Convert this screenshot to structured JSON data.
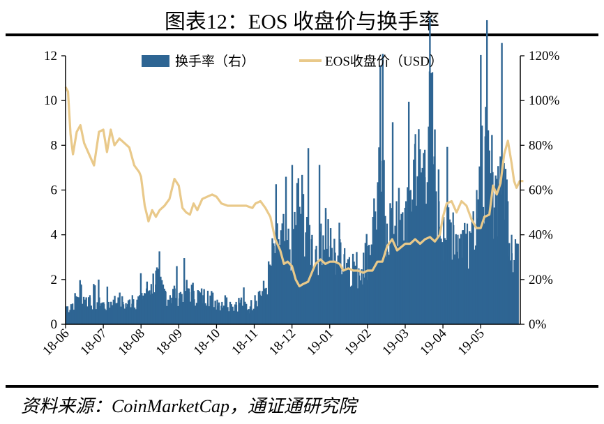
{
  "title": "图表12：EOS 收盘价与换手率",
  "source": "资料来源：CoinMarketCap，通证通研究院",
  "colors": {
    "turnover": "#2E6593",
    "price": "#E9C98A",
    "axis": "#000000"
  },
  "chart_data": {
    "type": "bar+line",
    "x_tick_labels": [
      "18-06",
      "18-07",
      "18-08",
      "18-09",
      "18-10",
      "18-11",
      "18-12",
      "19-01",
      "19-02",
      "19-03",
      "19-04",
      "19-05"
    ],
    "y_left": {
      "min": 0,
      "max": 12,
      "ticks": [
        "0",
        "2",
        "4",
        "6",
        "8",
        "10",
        "12"
      ]
    },
    "y_right": {
      "min": 0,
      "max": 120,
      "ticks": [
        "0%",
        "20%",
        "40%",
        "60%",
        "80%",
        "100%",
        "120%"
      ]
    },
    "legend": [
      "换手率（右）",
      "EOS收盘价（USD）"
    ],
    "legend_position": "top-center",
    "grid": false,
    "series": [
      {
        "name": "换手率（右）",
        "axis": "right",
        "type": "bar",
        "unit": "%",
        "monthly_samples": [
          {
            "month": "18-06",
            "values": [
              8,
              9,
              12,
              18,
              11,
              13,
              10,
              12
            ]
          },
          {
            "month": "18-07",
            "values": [
              9,
              10,
              11,
              12,
              10,
              9,
              13,
              11
            ]
          },
          {
            "month": "18-08",
            "values": [
              14,
              16,
              18,
              24,
              17,
              15,
              13,
              16
            ]
          },
          {
            "month": "18-09",
            "values": [
              14,
              17,
              16,
              15,
              14,
              13,
              15,
              12
            ]
          },
          {
            "month": "18-10",
            "values": [
              11,
              10,
              12,
              9,
              10,
              11,
              9,
              8
            ]
          },
          {
            "month": "18-11",
            "values": [
              13,
              15,
              16,
              24,
              35,
              38,
              40,
              36
            ]
          },
          {
            "month": "18-12",
            "values": [
              42,
              58,
              55,
              48,
              38,
              35,
              45,
              50
            ]
          },
          {
            "month": "19-01",
            "values": [
              35,
              32,
              38,
              34,
              30,
              28,
              25,
              32
            ]
          },
          {
            "month": "19-02",
            "values": [
              35,
              48,
              62,
              73,
              45,
              52,
              55,
              43
            ]
          },
          {
            "month": "19-03",
            "values": [
              55,
              60,
              85,
              70,
              78,
              113,
              75,
              55
            ]
          },
          {
            "month": "19-04",
            "values": [
              48,
              45,
              50,
              40,
              42,
              45,
              46,
              60
            ]
          },
          {
            "month": "19-05",
            "values": [
              72,
              84,
              70,
              68,
              65,
              75,
              72,
              55,
              40,
              38
            ]
          }
        ]
      },
      {
        "name": "EOS收盘价（USD）",
        "axis": "left",
        "type": "line",
        "unit": "USD",
        "points": [
          [
            "18-06-01",
            10.6
          ],
          [
            "18-06-03",
            10.4
          ],
          [
            "18-06-05",
            8.5
          ],
          [
            "18-06-07",
            7.6
          ],
          [
            "18-06-10",
            8.6
          ],
          [
            "18-06-13",
            8.9
          ],
          [
            "18-06-16",
            8.1
          ],
          [
            "18-06-20",
            7.6
          ],
          [
            "18-06-24",
            7.1
          ],
          [
            "18-06-28",
            8.6
          ],
          [
            "18-07-01",
            8.7
          ],
          [
            "18-07-04",
            7.7
          ],
          [
            "18-07-07",
            8.7
          ],
          [
            "18-07-10",
            8.0
          ],
          [
            "18-07-14",
            8.3
          ],
          [
            "18-07-18",
            8.1
          ],
          [
            "18-07-22",
            7.9
          ],
          [
            "18-07-26",
            7.1
          ],
          [
            "18-07-30",
            6.8
          ],
          [
            "18-08-01",
            6.6
          ],
          [
            "18-08-04",
            5.3
          ],
          [
            "18-08-07",
            4.6
          ],
          [
            "18-08-10",
            5.1
          ],
          [
            "18-08-13",
            4.8
          ],
          [
            "18-08-16",
            5.1
          ],
          [
            "18-08-20",
            5.3
          ],
          [
            "18-08-24",
            5.6
          ],
          [
            "18-08-28",
            6.5
          ],
          [
            "18-09-01",
            6.2
          ],
          [
            "18-09-04",
            5.2
          ],
          [
            "18-09-07",
            5.0
          ],
          [
            "18-09-10",
            4.9
          ],
          [
            "18-09-13",
            5.4
          ],
          [
            "18-09-16",
            5.1
          ],
          [
            "18-09-20",
            5.6
          ],
          [
            "18-09-24",
            5.7
          ],
          [
            "18-09-28",
            5.8
          ],
          [
            "18-10-01",
            5.7
          ],
          [
            "18-10-05",
            5.4
          ],
          [
            "18-10-10",
            5.3
          ],
          [
            "18-10-15",
            5.3
          ],
          [
            "18-10-20",
            5.3
          ],
          [
            "18-10-25",
            5.3
          ],
          [
            "18-10-30",
            5.2
          ],
          [
            "18-11-02",
            5.4
          ],
          [
            "18-11-06",
            5.5
          ],
          [
            "18-11-10",
            5.2
          ],
          [
            "18-11-14",
            4.8
          ],
          [
            "18-11-18",
            3.8
          ],
          [
            "18-11-22",
            3.3
          ],
          [
            "18-11-25",
            2.7
          ],
          [
            "18-11-28",
            2.8
          ],
          [
            "18-12-01",
            2.6
          ],
          [
            "18-12-04",
            2.0
          ],
          [
            "18-12-07",
            1.7
          ],
          [
            "18-12-10",
            1.8
          ],
          [
            "18-12-14",
            1.9
          ],
          [
            "18-12-17",
            2.3
          ],
          [
            "18-12-20",
            2.7
          ],
          [
            "18-12-24",
            2.9
          ],
          [
            "18-12-28",
            2.7
          ],
          [
            "19-01-01",
            2.8
          ],
          [
            "19-01-05",
            2.8
          ],
          [
            "19-01-09",
            2.7
          ],
          [
            "19-01-12",
            2.4
          ],
          [
            "19-01-16",
            2.5
          ],
          [
            "19-01-20",
            2.4
          ],
          [
            "19-01-24",
            2.4
          ],
          [
            "19-01-28",
            2.3
          ],
          [
            "19-02-01",
            2.4
          ],
          [
            "19-02-05",
            2.4
          ],
          [
            "19-02-09",
            2.8
          ],
          [
            "19-02-13",
            2.8
          ],
          [
            "19-02-17",
            3.5
          ],
          [
            "19-02-21",
            3.8
          ],
          [
            "19-02-25",
            3.3
          ],
          [
            "19-03-01",
            3.6
          ],
          [
            "19-03-05",
            3.6
          ],
          [
            "19-03-09",
            3.8
          ],
          [
            "19-03-13",
            3.6
          ],
          [
            "19-03-17",
            3.8
          ],
          [
            "19-03-21",
            3.9
          ],
          [
            "19-03-25",
            3.7
          ],
          [
            "19-03-29",
            4.0
          ],
          [
            "19-04-01",
            4.8
          ],
          [
            "19-04-04",
            5.4
          ],
          [
            "19-04-08",
            5.5
          ],
          [
            "19-04-12",
            5.0
          ],
          [
            "19-04-16",
            5.5
          ],
          [
            "19-04-20",
            5.3
          ],
          [
            "19-04-24",
            4.7
          ],
          [
            "19-04-28",
            4.3
          ],
          [
            "19-05-01",
            4.3
          ],
          [
            "19-05-04",
            4.8
          ],
          [
            "19-05-08",
            4.9
          ],
          [
            "19-05-11",
            6.2
          ],
          [
            "19-05-14",
            5.8
          ],
          [
            "19-05-17",
            6.3
          ],
          [
            "19-05-20",
            7.6
          ],
          [
            "19-05-23",
            8.2
          ],
          [
            "19-05-26",
            7.2
          ],
          [
            "19-05-28",
            6.4
          ],
          [
            "19-05-30",
            6.1
          ],
          [
            "19-06-02",
            6.4
          ],
          [
            "19-06-05",
            6.4
          ]
        ]
      }
    ]
  }
}
